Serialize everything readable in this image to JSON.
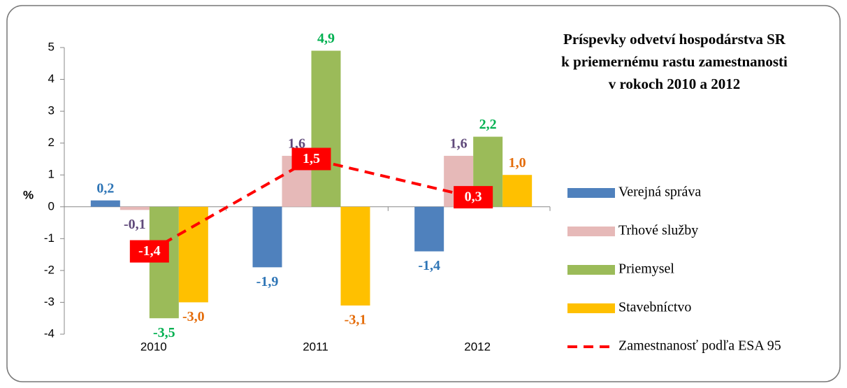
{
  "chart_data": {
    "type": "bar",
    "title": [
      "Príspevky odvetví hospodárstva SR",
      "k priemernému rastu zamestnanosti",
      "v rokoch 2010 a 2012"
    ],
    "y_label": "%",
    "categories": [
      "2010",
      "2011",
      "2012"
    ],
    "ylim": [
      -4,
      5
    ],
    "yticks": [
      -4,
      -3,
      -2,
      -1,
      0,
      1,
      2,
      3,
      4,
      5
    ],
    "grid": false,
    "legend": "right",
    "series": [
      {
        "name": "Verejná správa",
        "type": "bar",
        "color": "#4f81bd",
        "label_color": "#2e75b6",
        "values": [
          0.2,
          -1.9,
          -1.4
        ],
        "value_labels": [
          "0,2",
          "-1,9",
          "-1,4"
        ]
      },
      {
        "name": "Trhové služby",
        "type": "bar",
        "color": "#e6b9b8",
        "label_color": "#604a7b",
        "values": [
          -0.1,
          1.6,
          1.6
        ],
        "value_labels": [
          "-0,1",
          "1,6",
          "1,6"
        ]
      },
      {
        "name": "Priemysel",
        "type": "bar",
        "color": "#9bbb59",
        "label_color": "#00b050",
        "values": [
          -3.5,
          4.9,
          2.2
        ],
        "value_labels": [
          "-3,5",
          "4,9",
          "2,2"
        ]
      },
      {
        "name": "Stavebníctvo",
        "type": "bar",
        "color": "#ffc000",
        "label_color": "#e46c0a",
        "values": [
          -3.0,
          -3.1,
          1.0
        ],
        "value_labels": [
          "-3,0",
          "-3,1",
          "1,0"
        ]
      },
      {
        "name": "Zamestnanosť podľa ESA 95",
        "type": "line",
        "color": "#ff0000",
        "label_color": "#ffffff",
        "values": [
          -1.4,
          1.5,
          0.3
        ],
        "value_labels": [
          "-1,4",
          "1,5",
          "0,3"
        ]
      }
    ]
  }
}
